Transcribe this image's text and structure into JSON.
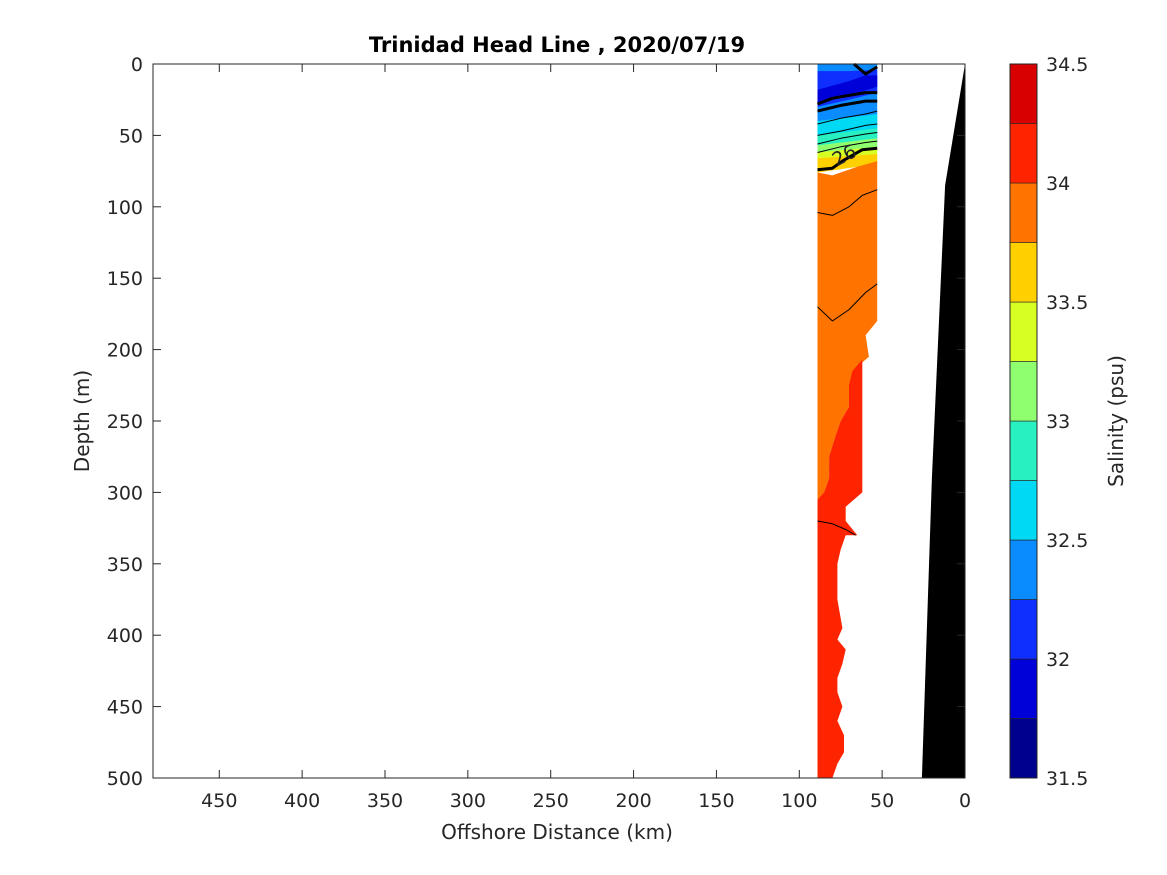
{
  "chart_data": {
    "type": "heatmap",
    "title": "Trinidad Head Line , 2020/07/19",
    "xlabel": "Offshore Distance (km)",
    "ylabel": "Depth (m)",
    "xlim": [
      490,
      0
    ],
    "ylim": [
      0,
      500
    ],
    "x_reversed": true,
    "y_reversed": true,
    "x_ticks": [
      450,
      400,
      350,
      300,
      250,
      200,
      150,
      100,
      50,
      0
    ],
    "y_ticks": [
      0,
      50,
      100,
      150,
      200,
      250,
      300,
      350,
      400,
      450,
      500
    ],
    "colorbar": {
      "label": "Salinity (psu)",
      "range": [
        31.5,
        34.5
      ],
      "ticks": [
        31.5,
        32,
        32.5,
        33,
        33.5,
        34,
        34.5
      ],
      "levels": [
        {
          "from": 31.5,
          "to": 31.75,
          "color": "#00008f"
        },
        {
          "from": 31.75,
          "to": 32.0,
          "color": "#0000d8"
        },
        {
          "from": 32.0,
          "to": 32.25,
          "color": "#0f2fff"
        },
        {
          "from": 32.25,
          "to": 32.5,
          "color": "#0a8cff"
        },
        {
          "from": 32.5,
          "to": 32.75,
          "color": "#00d9f4"
        },
        {
          "from": 32.75,
          "to": 33.0,
          "color": "#29f0c0"
        },
        {
          "from": 33.0,
          "to": 33.25,
          "color": "#8fff70"
        },
        {
          "from": 33.25,
          "to": 33.5,
          "color": "#d8ff23"
        },
        {
          "from": 33.5,
          "to": 33.75,
          "color": "#ffd000"
        },
        {
          "from": 33.75,
          "to": 34.0,
          "color": "#ff7400"
        },
        {
          "from": 34.0,
          "to": 34.25,
          "color": "#ff2400"
        },
        {
          "from": 34.25,
          "to": 34.5,
          "color": "#d80000"
        }
      ]
    },
    "contour_labels": [
      {
        "text": "26",
        "x": 71,
        "y": 68
      }
    ],
    "filled_regions": [
      {
        "name": "surface-layer",
        "color": "#0a8cff",
        "points": [
          [
            89,
            0
          ],
          [
            53,
            0
          ],
          [
            53,
            55
          ],
          [
            89,
            55
          ]
        ]
      },
      {
        "name": "thermocline-cyan",
        "color": "#00d9f4",
        "points": [
          [
            89,
            40
          ],
          [
            53,
            35
          ],
          [
            53,
            50
          ],
          [
            89,
            55
          ]
        ]
      },
      {
        "name": "thermocline-teal",
        "color": "#29f0c0",
        "points": [
          [
            89,
            50
          ],
          [
            53,
            45
          ],
          [
            53,
            58
          ],
          [
            89,
            60
          ]
        ]
      },
      {
        "name": "thermocline-green",
        "color": "#8fff70",
        "points": [
          [
            89,
            57
          ],
          [
            53,
            52
          ],
          [
            53,
            62
          ],
          [
            89,
            64
          ]
        ]
      },
      {
        "name": "thermocline-yellow",
        "color": "#d8ff23",
        "points": [
          [
            89,
            62
          ],
          [
            53,
            58
          ],
          [
            53,
            66
          ],
          [
            89,
            70
          ]
        ]
      },
      {
        "name": "thermocline-gold",
        "color": "#ffd000",
        "points": [
          [
            89,
            66
          ],
          [
            53,
            63
          ],
          [
            53,
            70
          ],
          [
            89,
            76
          ]
        ]
      },
      {
        "name": "orange-layer",
        "color": "#ff7400",
        "points": [
          [
            89,
            76
          ],
          [
            80,
            78
          ],
          [
            65,
            72
          ],
          [
            53,
            68
          ],
          [
            53,
            180
          ],
          [
            60,
            190
          ],
          [
            58,
            205
          ],
          [
            68,
            215
          ],
          [
            70,
            240
          ],
          [
            75,
            250
          ],
          [
            78,
            260
          ],
          [
            82,
            275
          ],
          [
            82,
            290
          ],
          [
            85,
            300
          ],
          [
            89,
            305
          ]
        ]
      },
      {
        "name": "red-layer",
        "color": "#ff2400",
        "points": [
          [
            89,
            305
          ],
          [
            85,
            300
          ],
          [
            82,
            290
          ],
          [
            82,
            275
          ],
          [
            78,
            260
          ],
          [
            75,
            250
          ],
          [
            70,
            240
          ],
          [
            70,
            225
          ],
          [
            68,
            215
          ],
          [
            62,
            207
          ],
          [
            62,
            300
          ],
          [
            72,
            310
          ],
          [
            72,
            320
          ],
          [
            65,
            330
          ],
          [
            72,
            330
          ],
          [
            75,
            340
          ],
          [
            77,
            350
          ],
          [
            77,
            375
          ],
          [
            74,
            395
          ],
          [
            77,
            403
          ],
          [
            72,
            410
          ],
          [
            74,
            420
          ],
          [
            77,
            430
          ],
          [
            77,
            440
          ],
          [
            74,
            450
          ],
          [
            77,
            460
          ],
          [
            73,
            470
          ],
          [
            73,
            482
          ],
          [
            77,
            490
          ],
          [
            80,
            500
          ],
          [
            89,
            500
          ]
        ]
      },
      {
        "name": "blue-deep",
        "color": "#0f2fff",
        "points": [
          [
            89,
            5
          ],
          [
            70,
            5
          ],
          [
            53,
            4
          ],
          [
            53,
            20
          ],
          [
            70,
            25
          ],
          [
            89,
            30
          ]
        ]
      },
      {
        "name": "blue-darker",
        "color": "#0000d8",
        "points": [
          [
            89,
            18
          ],
          [
            70,
            12
          ],
          [
            60,
            8
          ],
          [
            53,
            8
          ],
          [
            53,
            16
          ],
          [
            70,
            22
          ],
          [
            89,
            27
          ]
        ]
      }
    ],
    "bathymetry": {
      "color": "#000000",
      "points": [
        [
          0,
          0
        ],
        [
          12,
          85
        ],
        [
          20,
          290
        ],
        [
          26,
          500
        ],
        [
          0,
          500
        ]
      ]
    },
    "contour_lines": [
      {
        "width": 3,
        "points": [
          [
            89,
            28
          ],
          [
            80,
            24
          ],
          [
            70,
            22
          ],
          [
            60,
            20
          ],
          [
            53,
            20
          ]
        ]
      },
      {
        "width": 3,
        "points": [
          [
            89,
            33
          ],
          [
            75,
            29
          ],
          [
            60,
            26
          ],
          [
            53,
            26
          ]
        ]
      },
      {
        "width": 3,
        "points": [
          [
            89,
            74
          ],
          [
            80,
            73
          ],
          [
            74,
            68
          ],
          [
            62,
            60
          ],
          [
            53,
            59
          ]
        ]
      },
      {
        "width": 1,
        "points": [
          [
            89,
            42
          ],
          [
            75,
            38
          ],
          [
            60,
            35
          ],
          [
            53,
            33
          ]
        ]
      },
      {
        "width": 1,
        "points": [
          [
            89,
            50
          ],
          [
            75,
            47
          ],
          [
            60,
            43
          ],
          [
            53,
            42
          ]
        ]
      },
      {
        "width": 1,
        "points": [
          [
            89,
            56
          ],
          [
            75,
            52
          ],
          [
            60,
            49
          ],
          [
            53,
            48
          ]
        ]
      },
      {
        "width": 1,
        "points": [
          [
            89,
            62
          ],
          [
            75,
            58
          ],
          [
            60,
            55
          ],
          [
            53,
            54
          ]
        ]
      },
      {
        "width": 1,
        "points": [
          [
            89,
            104
          ],
          [
            80,
            106
          ],
          [
            70,
            100
          ],
          [
            62,
            92
          ],
          [
            53,
            88
          ]
        ]
      },
      {
        "width": 1,
        "points": [
          [
            89,
            170
          ],
          [
            80,
            180
          ],
          [
            70,
            172
          ],
          [
            60,
            160
          ],
          [
            53,
            154
          ]
        ]
      },
      {
        "width": 1,
        "points": [
          [
            89,
            320
          ],
          [
            80,
            322
          ],
          [
            72,
            326
          ],
          [
            66,
            330
          ]
        ]
      },
      {
        "width": 3,
        "points": [
          [
            67,
            0
          ],
          [
            60,
            7
          ],
          [
            53,
            2
          ]
        ]
      }
    ]
  }
}
